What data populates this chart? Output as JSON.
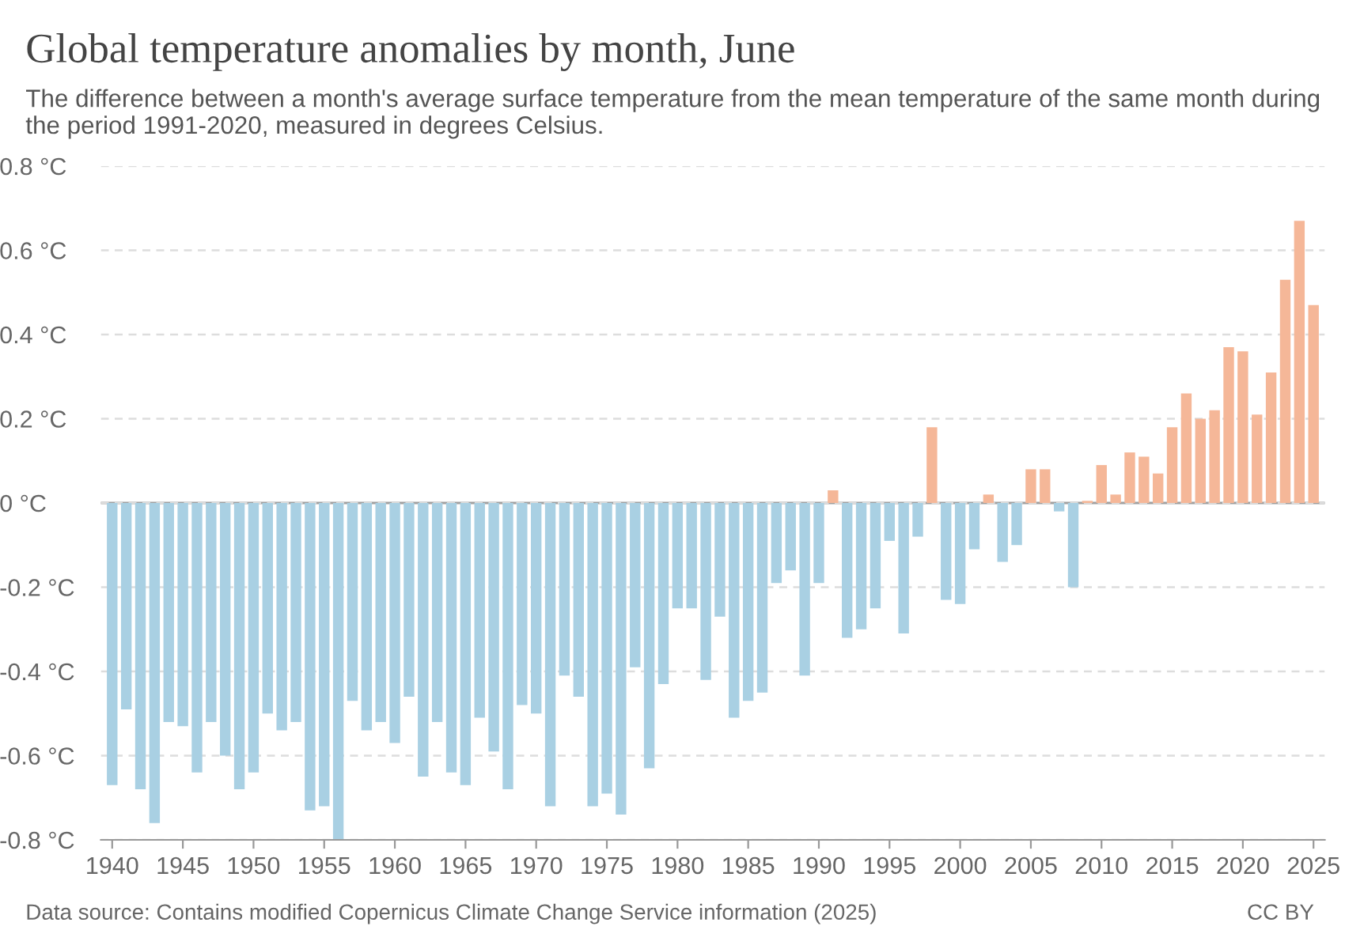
{
  "chart_data": {
    "type": "bar",
    "title": "Global temperature anomalies by month, June",
    "subtitle": "The difference between a month's average surface temperature from the mean temperature of the same month during the period 1991-2020, measured in degrees Celsius.",
    "x": [
      1940,
      1941,
      1942,
      1943,
      1944,
      1945,
      1946,
      1947,
      1948,
      1949,
      1950,
      1951,
      1952,
      1953,
      1954,
      1955,
      1956,
      1957,
      1958,
      1959,
      1960,
      1961,
      1962,
      1963,
      1964,
      1965,
      1966,
      1967,
      1968,
      1969,
      1970,
      1971,
      1972,
      1973,
      1974,
      1975,
      1976,
      1977,
      1978,
      1979,
      1980,
      1981,
      1982,
      1983,
      1984,
      1985,
      1986,
      1987,
      1988,
      1989,
      1990,
      1991,
      1992,
      1993,
      1994,
      1995,
      1996,
      1997,
      1998,
      1999,
      2000,
      2001,
      2002,
      2003,
      2004,
      2005,
      2006,
      2007,
      2008,
      2009,
      2010,
      2011,
      2012,
      2013,
      2014,
      2015,
      2016,
      2017,
      2018,
      2019,
      2020,
      2021,
      2022,
      2023,
      2024,
      2025
    ],
    "values": [
      -0.67,
      -0.49,
      -0.68,
      -0.76,
      -0.52,
      -0.53,
      -0.64,
      -0.52,
      -0.6,
      -0.68,
      -0.64,
      -0.5,
      -0.54,
      -0.52,
      -0.73,
      -0.72,
      -0.8,
      -0.47,
      -0.54,
      -0.52,
      -0.57,
      -0.46,
      -0.65,
      -0.52,
      -0.64,
      -0.67,
      -0.51,
      -0.59,
      -0.68,
      -0.48,
      -0.5,
      -0.72,
      -0.41,
      -0.46,
      -0.72,
      -0.69,
      -0.74,
      -0.39,
      -0.63,
      -0.43,
      -0.25,
      -0.25,
      -0.42,
      -0.27,
      -0.51,
      -0.47,
      -0.45,
      -0.19,
      -0.16,
      -0.41,
      -0.19,
      0.03,
      -0.32,
      -0.3,
      -0.25,
      -0.09,
      -0.31,
      -0.08,
      0.18,
      -0.23,
      -0.24,
      -0.11,
      0.02,
      -0.14,
      -0.1,
      0.08,
      0.08,
      -0.02,
      -0.2,
      0.005,
      0.09,
      0.02,
      0.12,
      0.11,
      0.07,
      0.18,
      0.26,
      0.2,
      0.22,
      0.37,
      0.36,
      0.21,
      0.31,
      0.53,
      0.67,
      0.47
    ],
    "colors": [
      "#a9d0e3",
      "#a9d0e3",
      "#a9d0e3",
      "#a9d0e3",
      "#a9d0e3",
      "#a9d0e3",
      "#a9d0e3",
      "#a9d0e3",
      "#a9d0e3",
      "#a9d0e3",
      "#a9d0e3",
      "#a9d0e3",
      "#a9d0e3",
      "#a9d0e3",
      "#a9d0e3",
      "#a9d0e3",
      "#a9d0e3",
      "#a9d0e3",
      "#a9d0e3",
      "#a9d0e3",
      "#a9d0e3",
      "#a9d0e3",
      "#a9d0e3",
      "#a9d0e3",
      "#a9d0e3",
      "#a9d0e3",
      "#a9d0e3",
      "#a9d0e3",
      "#a9d0e3",
      "#a9d0e3",
      "#a9d0e3",
      "#a9d0e3",
      "#a9d0e3",
      "#a9d0e3",
      "#a9d0e3",
      "#a9d0e3",
      "#a9d0e3",
      "#a9d0e3",
      "#a9d0e3",
      "#a9d0e3",
      "#a9d0e3",
      "#a9d0e3",
      "#a9d0e3",
      "#a9d0e3",
      "#a9d0e3",
      "#a9d0e3",
      "#a9d0e3",
      "#a9d0e3",
      "#a9d0e3",
      "#a9d0e3",
      "#a9d0e3",
      "#f5b798",
      "#a9d0e3",
      "#a9d0e3",
      "#a9d0e3",
      "#a9d0e3",
      "#a9d0e3",
      "#a9d0e3",
      "#f5b798",
      "#a9d0e3",
      "#a9d0e3",
      "#a9d0e3",
      "#f5b798",
      "#a9d0e3",
      "#a9d0e3",
      "#f5b798",
      "#f5b798",
      "#a9d0e3",
      "#a9d0e3",
      "#f5b798",
      "#f5b798",
      "#f5b798",
      "#f5b798",
      "#f5b798",
      "#f5b798",
      "#f5b798",
      "#f5b798",
      "#f5b798",
      "#f5b798",
      "#f5b798",
      "#f5b798",
      "#f5b798",
      "#f5b798",
      "#f5b798",
      "#f5b798",
      "#f5b798"
    ],
    "xlim": [
      1939.2,
      2025.8
    ],
    "xticks": [
      1940,
      1945,
      1950,
      1955,
      1960,
      1965,
      1970,
      1975,
      1980,
      1985,
      1990,
      1995,
      2000,
      2005,
      2010,
      2015,
      2020,
      2025
    ],
    "ylim": [
      -0.8,
      0.8
    ],
    "yticks": [
      {
        "value": -0.8,
        "label": "-0.8 °C"
      },
      {
        "value": -0.6,
        "label": "-0.6 °C"
      },
      {
        "value": -0.4,
        "label": "-0.4 °C"
      },
      {
        "value": -0.2,
        "label": "-0.2 °C"
      },
      {
        "value": 0,
        "label": "0 °C"
      },
      {
        "value": 0.2,
        "label": "0.2 °C"
      },
      {
        "value": 0.4,
        "label": "0.4 °C"
      },
      {
        "value": 0.6,
        "label": "0.6 °C"
      },
      {
        "value": 0.8,
        "label": "0.8 °C"
      }
    ],
    "grid": "y",
    "ref_lines": [
      {
        "axis": "y",
        "value": 0,
        "label": null,
        "color": "#a0a0a0"
      }
    ],
    "annotations": [
      "Data source: Contains modified Copernicus Climate Change Service information (2025)",
      "CC BY"
    ]
  }
}
